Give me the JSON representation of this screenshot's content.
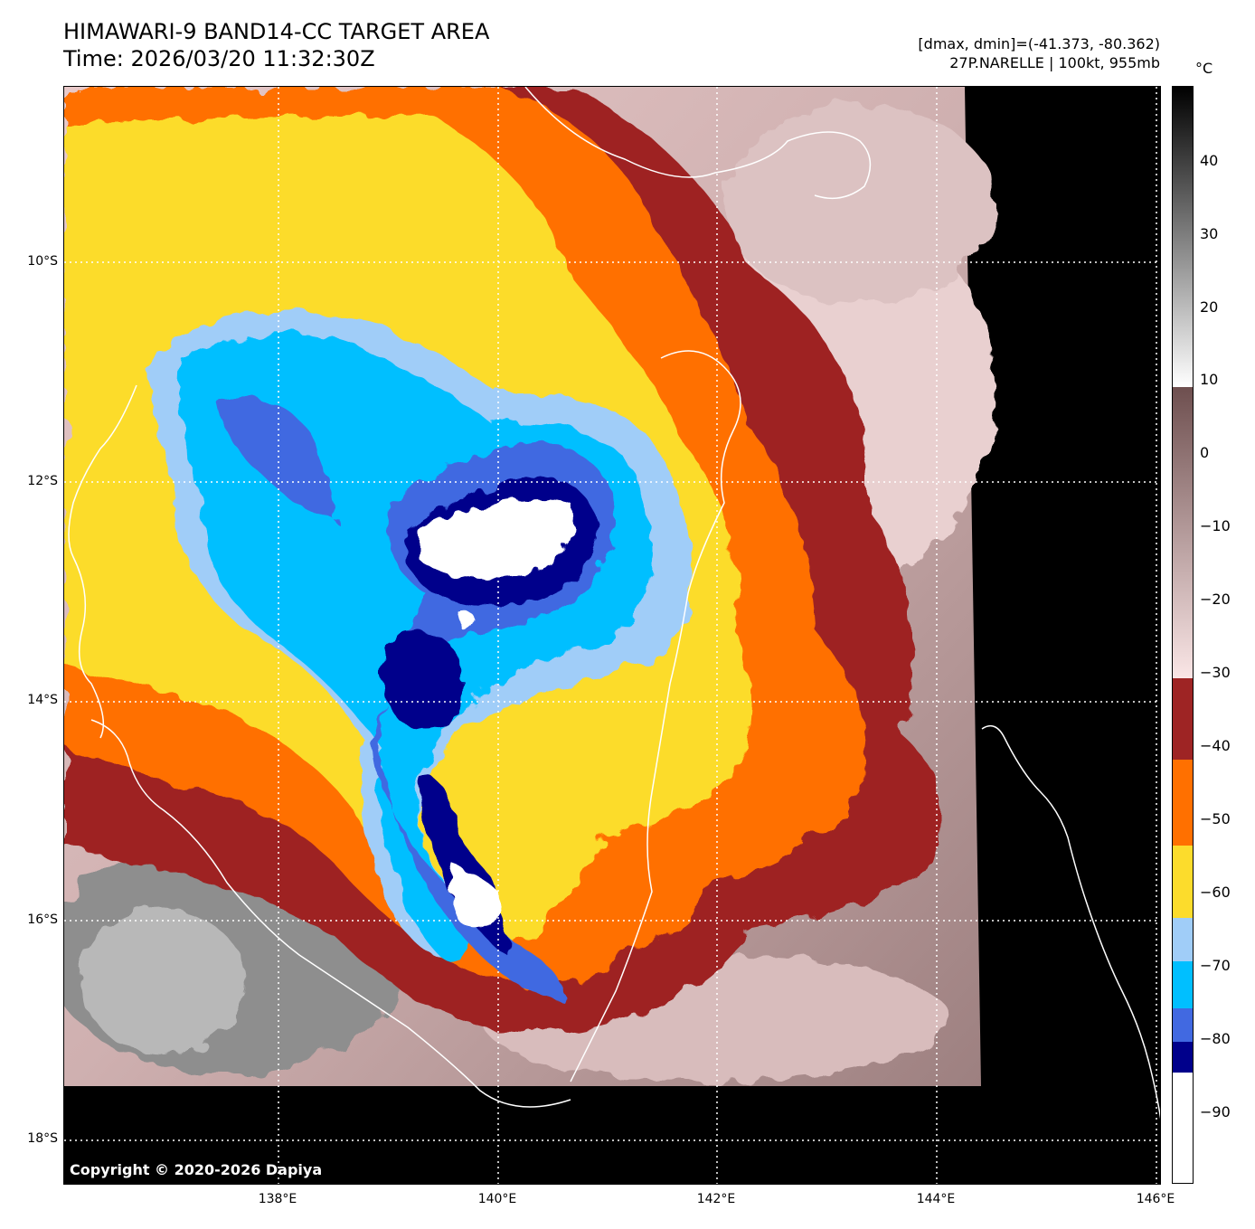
{
  "title": {
    "line1": "HIMAWARI-9 BAND14-CC TARGET AREA",
    "line2": "Time: 2026/03/20 11:32:30Z"
  },
  "info": {
    "dminmax": "[dmax, dmin]=(-41.373, -80.362)",
    "storm": "27P.NARELLE | 100kt, 955mb"
  },
  "copyright": "Copyright © 2020-2026 Dapiya",
  "map": {
    "lat_labels": [
      "10°S",
      "12°S",
      "14°S",
      "16°S",
      "18°S"
    ],
    "lon_labels": [
      "138°E",
      "140°E",
      "142°E",
      "144°E",
      "146°E"
    ],
    "lat_values": [
      -10,
      -12,
      -14,
      -16,
      -18
    ],
    "lon_values": [
      138,
      140,
      142,
      144,
      146
    ],
    "extent": {
      "lon_min": 136.05,
      "lon_max": 146.05,
      "lat_max": -8.4,
      "lat_min": -18.4
    }
  },
  "colorbar": {
    "unit": "°C",
    "ticks": [
      "40",
      "30",
      "20",
      "10",
      "0",
      "−10",
      "−20",
      "−30",
      "−40",
      "−50",
      "−60",
      "−70",
      "−80",
      "−90"
    ],
    "tick_values": [
      40,
      30,
      20,
      10,
      0,
      -10,
      -20,
      -30,
      -40,
      -50,
      -60,
      -70,
      -80,
      -90
    ],
    "range": [
      -100,
      50
    ],
    "colors": {
      "warm_black": "#000000",
      "gray_white": "#ffffff",
      "brown": "#7a5a5a",
      "pink": "#f3d9d9",
      "dark_red": "#9e2424",
      "orange": "#ff7000",
      "yellow": "#fcdc2c",
      "light_blue": "#a0cdf8",
      "cyan": "#00bfff",
      "royal_blue": "#4169e1",
      "navy": "#00008b",
      "white_core": "#ffffff"
    }
  }
}
